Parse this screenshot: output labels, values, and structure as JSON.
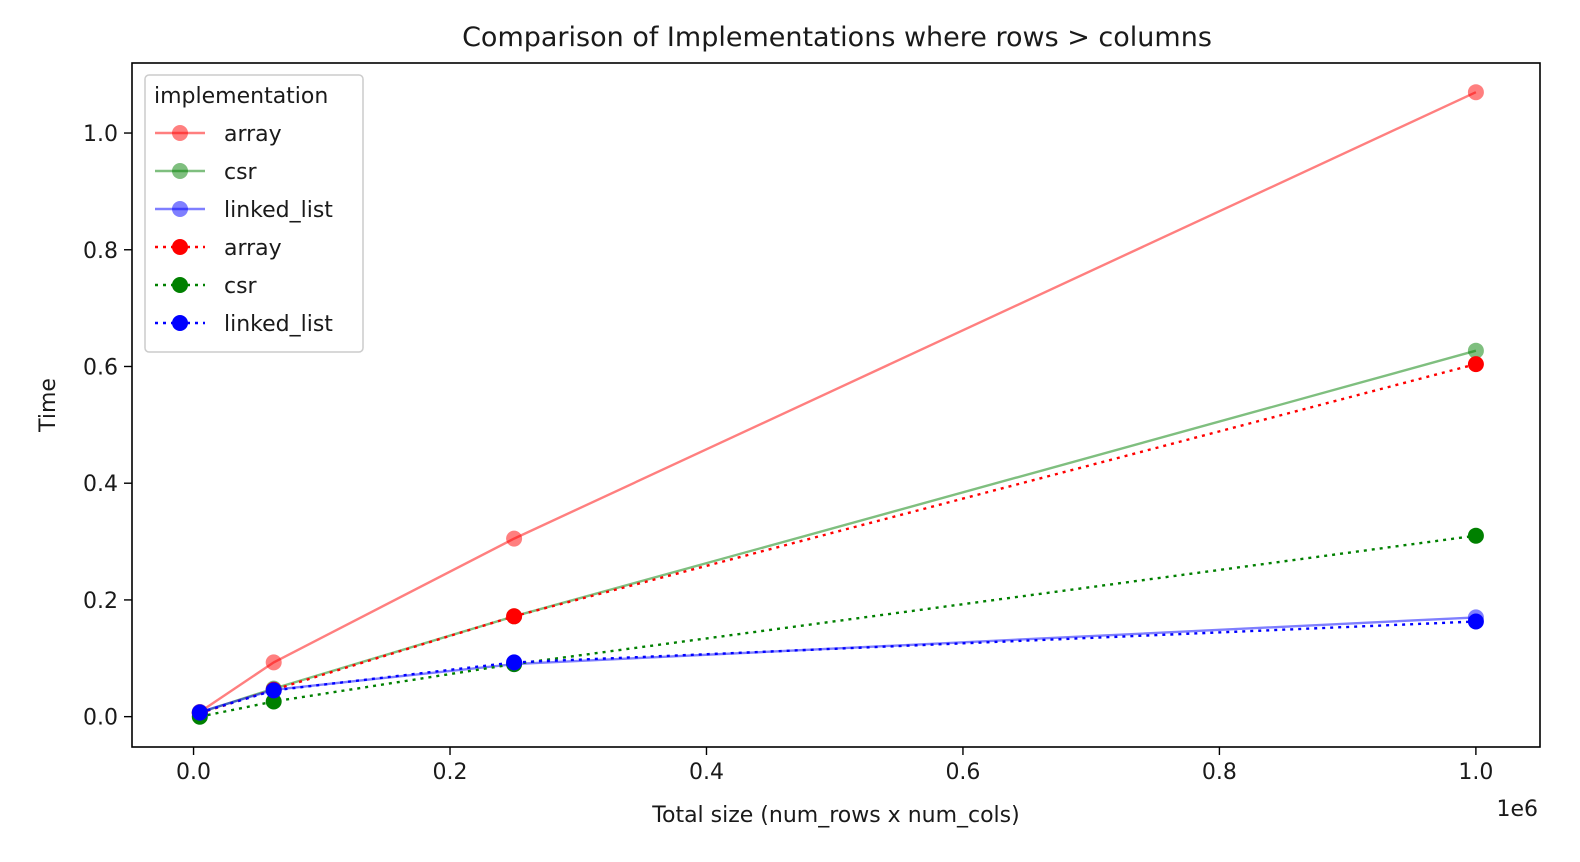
{
  "chart_data": {
    "type": "line",
    "title": "Comparison of Implementations where rows > columns",
    "xlabel": "Total size (num_rows x num_cols)",
    "ylabel": "Time",
    "x_offset_text": "1e6",
    "xlim": [
      -0.048,
      1.05
    ],
    "ylim": [
      -0.052,
      1.12
    ],
    "x_ticks": [
      0.0,
      0.2,
      0.4,
      0.6,
      0.8,
      1.0
    ],
    "x_tick_labels": [
      "0.0",
      "0.2",
      "0.4",
      "0.6",
      "0.8",
      "1.0"
    ],
    "y_ticks": [
      0.0,
      0.2,
      0.4,
      0.6,
      0.8,
      1.0
    ],
    "y_tick_labels": [
      "0.0",
      "0.2",
      "0.4",
      "0.6",
      "0.8",
      "1.0"
    ],
    "grid": false,
    "legend": {
      "title": "implementation",
      "placement": "top-left"
    },
    "x_values": [
      0.0049,
      0.0625,
      0.25,
      1.0
    ],
    "series": [
      {
        "name": "array",
        "color": "#ff0000",
        "alpha": 0.5,
        "linestyle": "solid",
        "values": [
          0.008,
          0.093,
          0.305,
          1.07
        ]
      },
      {
        "name": "csr",
        "color": "#008000",
        "alpha": 0.5,
        "linestyle": "solid",
        "values": [
          0.007,
          0.048,
          0.172,
          0.627
        ]
      },
      {
        "name": "linked_list",
        "color": "#0000ff",
        "alpha": 0.5,
        "linestyle": "solid",
        "values": [
          0.008,
          0.046,
          0.09,
          0.17
        ]
      },
      {
        "name": "array",
        "color": "#ff0000",
        "alpha": 1.0,
        "linestyle": "dotted",
        "values": [
          0.006,
          0.046,
          0.172,
          0.604
        ]
      },
      {
        "name": "csr",
        "color": "#008000",
        "alpha": 1.0,
        "linestyle": "dotted",
        "values": [
          0.0,
          0.026,
          0.09,
          0.31
        ]
      },
      {
        "name": "linked_list",
        "color": "#0000ff",
        "alpha": 1.0,
        "linestyle": "dotted",
        "values": [
          0.007,
          0.045,
          0.093,
          0.163
        ]
      }
    ]
  }
}
